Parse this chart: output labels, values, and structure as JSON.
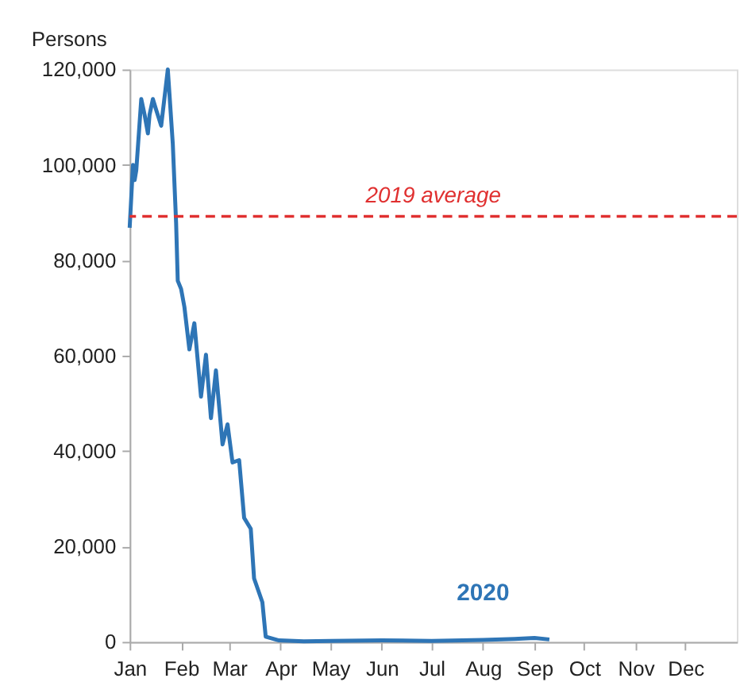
{
  "chart_data": {
    "type": "line",
    "ylabel": "Persons",
    "x": [
      "2020-01-01",
      "2020-01-03",
      "2020-01-04",
      "2020-01-05",
      "2020-01-08",
      "2020-01-10",
      "2020-01-12",
      "2020-01-13",
      "2020-01-15",
      "2020-01-17",
      "2020-01-20",
      "2020-01-24",
      "2020-01-27",
      "2020-01-29",
      "2020-01-30",
      "2020-02-01",
      "2020-02-03",
      "2020-02-06",
      "2020-02-09",
      "2020-02-13",
      "2020-02-16",
      "2020-02-19",
      "2020-02-22",
      "2020-02-26",
      "2020-02-29",
      "2020-03-03",
      "2020-03-07",
      "2020-03-10",
      "2020-03-14",
      "2020-03-16",
      "2020-03-21",
      "2020-03-23",
      "2020-03-31",
      "2020-04-15",
      "2020-05-01",
      "2020-06-01",
      "2020-07-01",
      "2020-08-01",
      "2020-08-20",
      "2020-09-01",
      "2020-09-10"
    ],
    "series": [
      {
        "name": "2020",
        "color": "#2e75b6",
        "values": [
          86800,
          100000,
          96800,
          98900,
          113800,
          110500,
          106600,
          110500,
          113800,
          111500,
          108200,
          120000,
          104400,
          87800,
          75700,
          74000,
          70200,
          61300,
          66800,
          51400,
          60200,
          46900,
          56900,
          41400,
          45600,
          37600,
          38100,
          26000,
          23700,
          13300,
          8300,
          1100,
          300,
          100,
          200,
          300,
          200,
          400,
          600,
          800,
          500
        ]
      }
    ],
    "xlim": [
      "2020-01-01",
      "2021-01-01"
    ],
    "xticks": [
      {
        "value": "2020-01-01",
        "label": "Jan"
      },
      {
        "value": "2020-02-01",
        "label": "Feb"
      },
      {
        "value": "2020-03-01",
        "label": "Mar"
      },
      {
        "value": "2020-04-01",
        "label": "Apr"
      },
      {
        "value": "2020-05-01",
        "label": "May"
      },
      {
        "value": "2020-06-01",
        "label": "Jun"
      },
      {
        "value": "2020-07-01",
        "label": "Jul"
      },
      {
        "value": "2020-08-01",
        "label": "Aug"
      },
      {
        "value": "2020-09-01",
        "label": "Sep"
      },
      {
        "value": "2020-10-01",
        "label": "Oct"
      },
      {
        "value": "2020-11-01",
        "label": "Nov"
      },
      {
        "value": "2020-12-01",
        "label": "Dec"
      }
    ],
    "ylim": [
      0,
      120000
    ],
    "yticks": [
      {
        "value": 0,
        "label": "0"
      },
      {
        "value": 20000,
        "label": "20,000"
      },
      {
        "value": 40000,
        "label": "40,000"
      },
      {
        "value": 60000,
        "label": "60,000"
      },
      {
        "value": 80000,
        "label": "80,000"
      },
      {
        "value": 100000,
        "label": "100,000"
      },
      {
        "value": 120000,
        "label": "120,000"
      }
    ],
    "ref_lines": [
      {
        "axis": "y",
        "value": 89200,
        "label": "2019 average",
        "color": "#e03030",
        "line_style": "dashed"
      }
    ],
    "grid": false,
    "legend": false,
    "marker": "none",
    "line_style": "solid"
  }
}
